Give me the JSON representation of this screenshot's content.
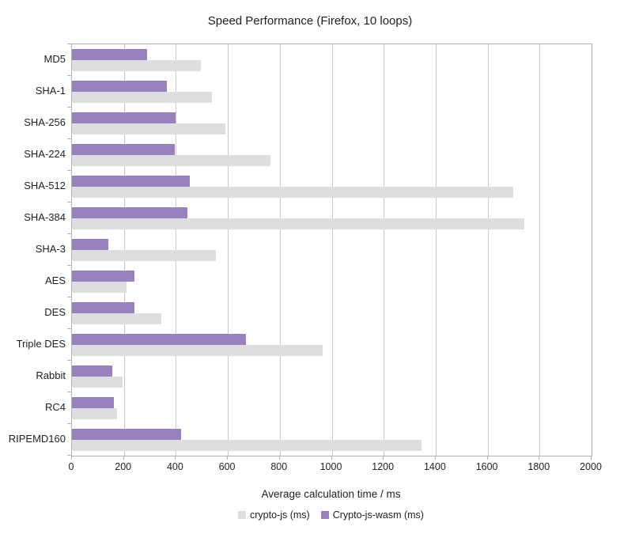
{
  "title": "Speed Performance (Firefox, 10 loops)",
  "colors": {
    "series_crypto_js": "#dedede",
    "series_crypto_js_wasm": "#9881be",
    "gridline": "#c9c9c9",
    "axis": "#b2b2b2",
    "text": "#1f1f1f",
    "background": "#ffffff"
  },
  "chart_data": {
    "type": "bar",
    "orientation": "horizontal",
    "title": "Speed Performance (Firefox, 10 loops)",
    "xlabel": "Average calculation time / ms",
    "ylabel": "",
    "xlim": [
      0,
      2000
    ],
    "xticks": [
      0,
      200,
      400,
      600,
      800,
      1000,
      1200,
      1400,
      1600,
      1800,
      2000
    ],
    "grid": true,
    "legend_position": "bottom",
    "categories": [
      "MD5",
      "SHA-1",
      "SHA-256",
      "SHA-224",
      "SHA-512",
      "SHA-384",
      "SHA-3",
      "AES",
      "DES",
      "Triple DES",
      "Rabbit",
      "RC4",
      "RIPEMD160"
    ],
    "series": [
      {
        "name": "crypto-js (ms)",
        "color": "#dedede",
        "values": [
          495,
          540,
          590,
          765,
          1700,
          1740,
          555,
          210,
          345,
          965,
          195,
          175,
          1345
        ]
      },
      {
        "name": "Crypto-js-wasm (ms)",
        "color": "#9881be",
        "values": [
          290,
          365,
          400,
          395,
          455,
          445,
          140,
          240,
          240,
          670,
          155,
          160,
          420
        ]
      }
    ]
  }
}
